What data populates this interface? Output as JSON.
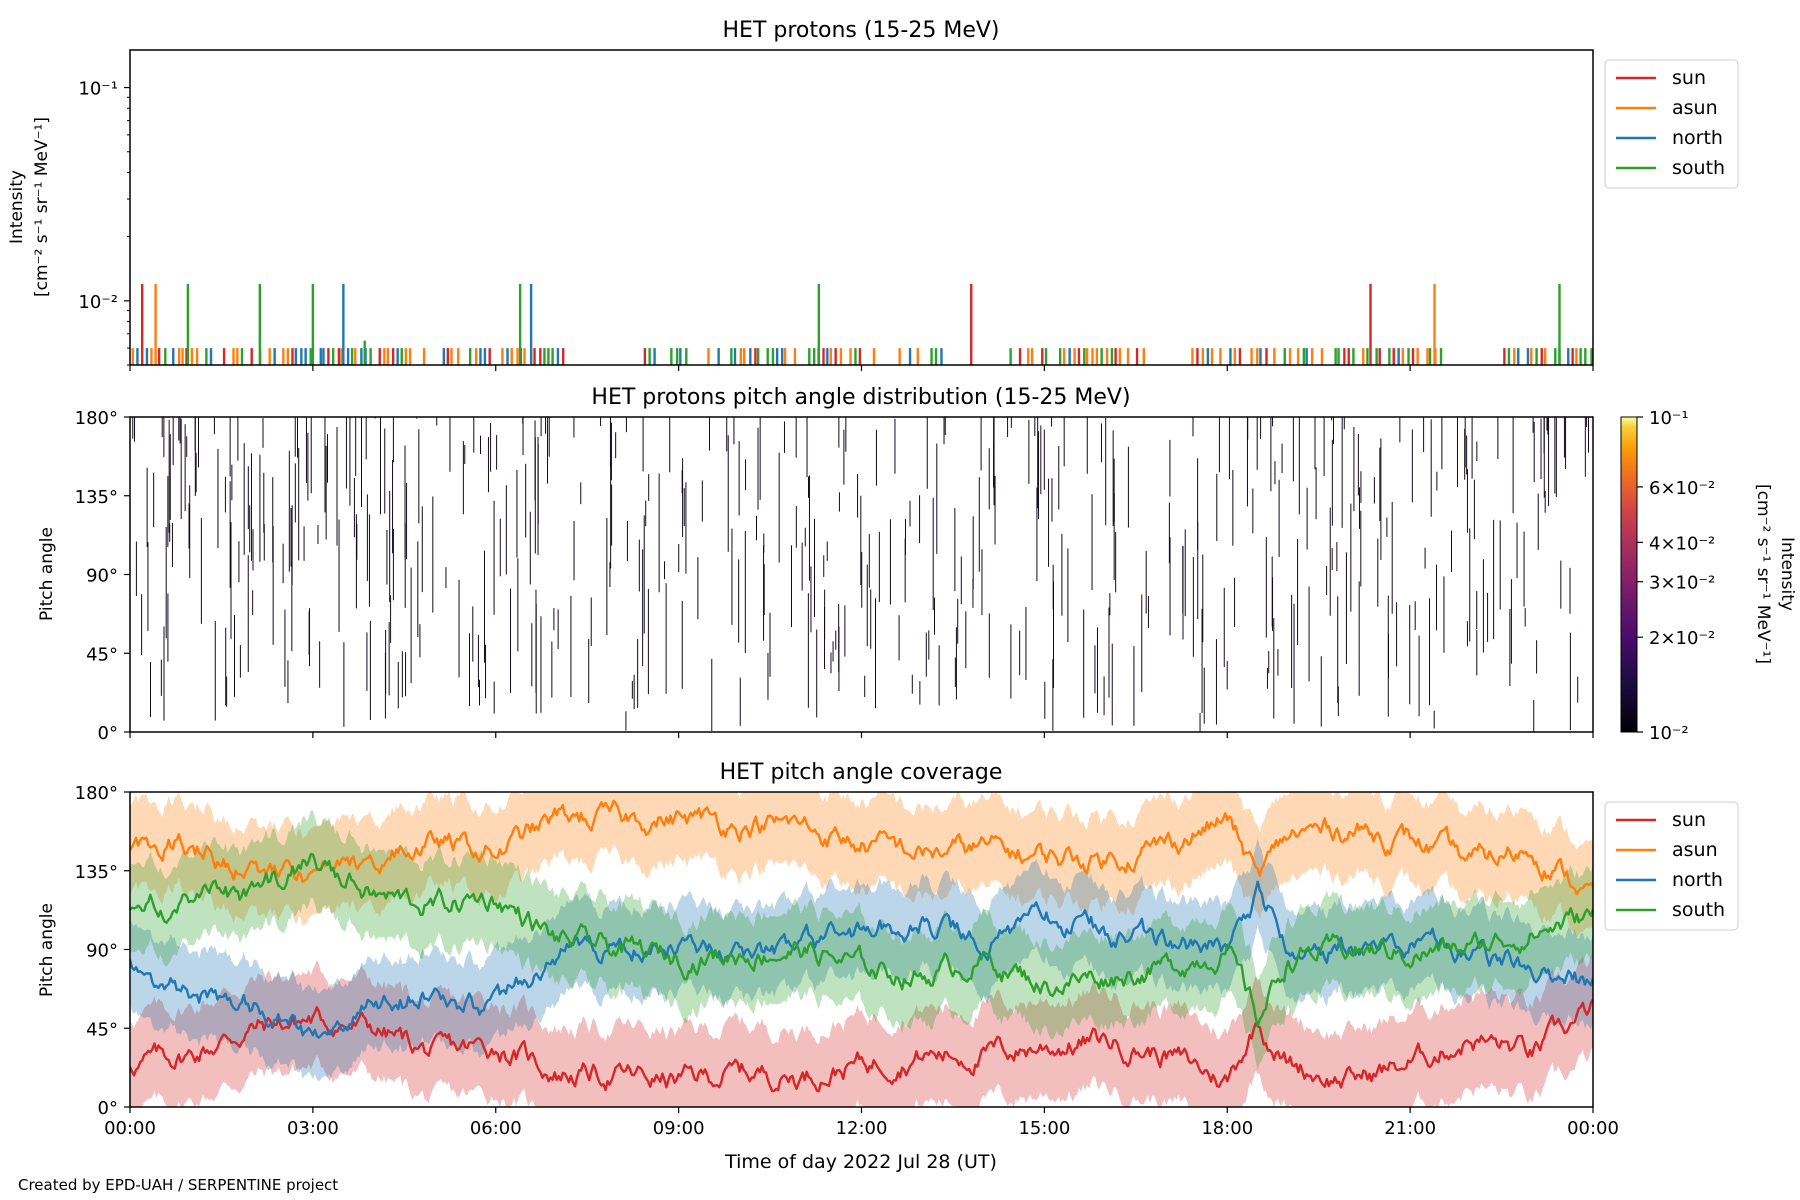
{
  "footer": "Created by EPD-UAH / SERPENTINE project",
  "colors": {
    "sun": "#d62728",
    "asun": "#ff7f0e",
    "north": "#1f77b4",
    "south": "#2ca02c"
  },
  "chart_data": [
    {
      "type": "line",
      "title": "HET protons (15-25 MeV)",
      "ylabel": [
        "Intensity",
        "[cm⁻² s⁻¹ sr⁻¹ MeV⁻¹]"
      ],
      "yscale": "log",
      "ylim": [
        0.005,
        0.15
      ],
      "yticks": [
        {
          "value": 0.1,
          "label": "10⁻¹"
        },
        {
          "value": 0.01,
          "label": "10⁻²"
        }
      ],
      "x_hours_range": [
        0,
        24
      ],
      "legend": {
        "position": "top-right",
        "entries": [
          "sun",
          "asun",
          "north",
          "south"
        ]
      },
      "baseline_value": 0.006,
      "spikes": [
        {
          "series": "sun",
          "t_hours": 0.2,
          "value": 0.012
        },
        {
          "series": "asun",
          "t_hours": 0.42,
          "value": 0.012
        },
        {
          "series": "south",
          "t_hours": 0.95,
          "value": 0.012
        },
        {
          "series": "south",
          "t_hours": 2.13,
          "value": 0.012
        },
        {
          "series": "south",
          "t_hours": 3.0,
          "value": 0.012
        },
        {
          "series": "north",
          "t_hours": 3.5,
          "value": 0.012
        },
        {
          "series": "south",
          "t_hours": 3.85,
          "value": 0.0065
        },
        {
          "series": "south",
          "t_hours": 6.4,
          "value": 0.012
        },
        {
          "series": "north",
          "t_hours": 6.58,
          "value": 0.012
        },
        {
          "series": "south",
          "t_hours": 11.3,
          "value": 0.012
        },
        {
          "series": "sun",
          "t_hours": 13.8,
          "value": 0.012
        },
        {
          "series": "sun",
          "t_hours": 20.35,
          "value": 0.012
        },
        {
          "series": "asun",
          "t_hours": 21.4,
          "value": 0.012
        },
        {
          "series": "south",
          "t_hours": 23.45,
          "value": 0.012
        }
      ],
      "baseline_gaps_hours": [
        [
          1.3,
          1.5
        ],
        [
          4.6,
          4.8
        ],
        [
          7.1,
          8.4
        ],
        [
          12.2,
          12.6
        ],
        [
          13.4,
          14.2
        ],
        [
          16.6,
          17.3
        ],
        [
          21.6,
          22.5
        ]
      ]
    },
    {
      "type": "heatmap",
      "title": "HET protons pitch angle distribution (15-25 MeV)",
      "ylabel": "Pitch angle",
      "ylim": [
        0,
        180
      ],
      "yticks": [
        "0°",
        "45°",
        "90°",
        "135°",
        "180°"
      ],
      "colorbar": {
        "label": [
          "Intensity",
          "[cm⁻² s⁻¹ sr⁻¹ MeV⁻¹]"
        ],
        "scale": "log",
        "range": [
          0.01,
          0.1
        ],
        "colormap": "inferno",
        "ticks": [
          {
            "value": 0.1,
            "label": "10⁻¹"
          },
          {
            "value": 0.06,
            "label": "6×10⁻²"
          },
          {
            "value": 0.04,
            "label": "4×10⁻²"
          },
          {
            "value": 0.03,
            "label": "3×10⁻²"
          },
          {
            "value": 0.02,
            "label": "2×10⁻²"
          },
          {
            "value": 0.01,
            "label": "10⁻²"
          }
        ]
      },
      "note": "sparse single-count detections drawn as thin dark vertical streaks"
    },
    {
      "type": "area",
      "title": "HET pitch angle coverage",
      "ylabel": "Pitch angle",
      "xlabel": "Time of day 2022 Jul 28 (UT)",
      "ylim": [
        0,
        180
      ],
      "yticks": [
        "0°",
        "45°",
        "90°",
        "135°",
        "180°"
      ],
      "xticks": [
        "00:00",
        "03:00",
        "06:00",
        "09:00",
        "12:00",
        "15:00",
        "18:00",
        "21:00",
        "00:00"
      ],
      "legend": {
        "position": "top-right",
        "entries": [
          "sun",
          "asun",
          "north",
          "south"
        ]
      },
      "x_hours": [
        0,
        1,
        2,
        3,
        4,
        5,
        6,
        7,
        8,
        9,
        10,
        11,
        12,
        13,
        14,
        15,
        16,
        17,
        18,
        18.5,
        19,
        20,
        21,
        22,
        23,
        24
      ],
      "series": [
        {
          "name": "sun",
          "half_width": 27,
          "center": [
            25,
            30,
            45,
            50,
            45,
            30,
            35,
            20,
            18,
            15,
            20,
            18,
            25,
            30,
            30,
            35,
            38,
            30,
            15,
            50,
            25,
            15,
            25,
            40,
            30,
            55
          ]
        },
        {
          "name": "asun",
          "half_width": 25,
          "center": [
            150,
            150,
            135,
            130,
            140,
            150,
            145,
            165,
            165,
            165,
            162,
            160,
            150,
            145,
            148,
            143,
            142,
            150,
            165,
            130,
            155,
            160,
            152,
            140,
            148,
            120
          ]
        },
        {
          "name": "north",
          "half_width": 25,
          "center": [
            80,
            65,
            60,
            40,
            55,
            65,
            55,
            90,
            90,
            95,
            90,
            90,
            100,
            105,
            95,
            110,
            100,
            95,
            90,
            125,
            95,
            90,
            92,
            90,
            80,
            70
          ]
        },
        {
          "name": "south",
          "half_width": 25,
          "center": [
            110,
            120,
            120,
            140,
            120,
            115,
            120,
            95,
            90,
            85,
            88,
            90,
            80,
            75,
            85,
            70,
            75,
            80,
            90,
            50,
            85,
            90,
            88,
            90,
            100,
            110
          ]
        }
      ]
    }
  ]
}
